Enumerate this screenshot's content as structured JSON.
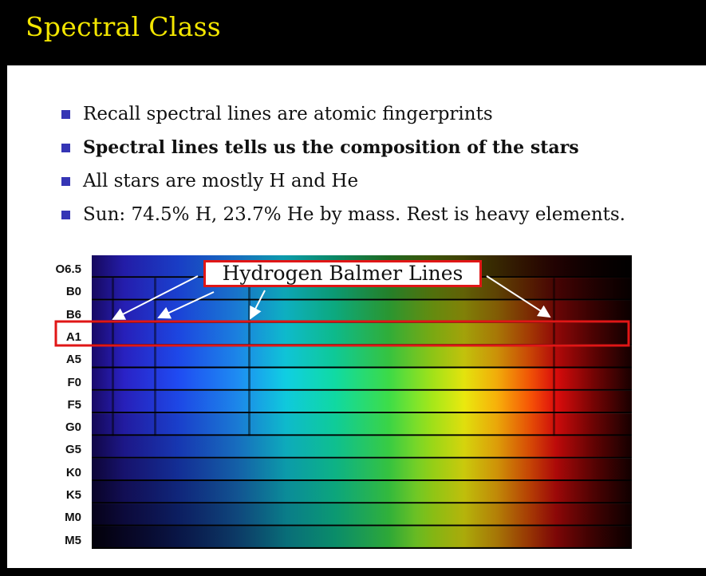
{
  "slide": {
    "title": "Spectral Class",
    "bullets": [
      {
        "text": "Recall spectral lines are atomic fingerprints",
        "bold": false
      },
      {
        "text": "Spectral lines tells us the composition of the stars",
        "bold": true
      },
      {
        "text": "All stars are mostly H and He",
        "bold": false
      },
      {
        "text": "Sun: 74.5% H, 23.7% He by mass. Rest is heavy elements.",
        "bold": false
      }
    ]
  },
  "spectrum": {
    "classes": [
      "O6.5",
      "B0",
      "B6",
      "A1",
      "A5",
      "F0",
      "F5",
      "G0",
      "G5",
      "K0",
      "K5",
      "M0",
      "M5"
    ],
    "highlighted_class": "A1",
    "callout_label": "Hydrogen Balmer Lines",
    "highlight_color": "#e01616"
  }
}
